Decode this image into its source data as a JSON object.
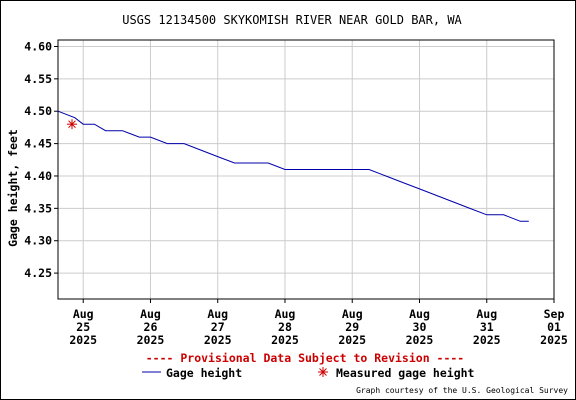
{
  "chart_data": {
    "type": "line",
    "title": "USGS 12134500 SKYKOMISH RIVER NEAR GOLD BAR, WA",
    "ylabel": "Gage height, feet",
    "xlabel": "",
    "ylim": [
      4.21,
      4.61
    ],
    "grid": true,
    "y_ticks": [
      "4.25",
      "4.30",
      "4.35",
      "4.40",
      "4.45",
      "4.50",
      "4.55",
      "4.60"
    ],
    "x_ticks": [
      {
        "month": "Aug",
        "day": "25",
        "year": "2025"
      },
      {
        "month": "Aug",
        "day": "26",
        "year": "2025"
      },
      {
        "month": "Aug",
        "day": "27",
        "year": "2025"
      },
      {
        "month": "Aug",
        "day": "28",
        "year": "2025"
      },
      {
        "month": "Aug",
        "day": "29",
        "year": "2025"
      },
      {
        "month": "Aug",
        "day": "30",
        "year": "2025"
      },
      {
        "month": "Aug",
        "day": "31",
        "year": "2025"
      },
      {
        "month": "Sep",
        "day": "01",
        "year": "2025"
      }
    ],
    "xlim": [
      "2025-08-24T15:00",
      "2025-09-01T00:00"
    ],
    "series": [
      {
        "name": "Gage height",
        "color": "#0000aa",
        "points": [
          [
            "2025-08-24T15:00",
            4.5
          ],
          [
            "2025-08-24T21:00",
            4.49
          ],
          [
            "2025-08-25T00:00",
            4.48
          ],
          [
            "2025-08-25T04:00",
            4.48
          ],
          [
            "2025-08-25T08:00",
            4.47
          ],
          [
            "2025-08-25T14:00",
            4.47
          ],
          [
            "2025-08-25T20:00",
            4.46
          ],
          [
            "2025-08-26T00:00",
            4.46
          ],
          [
            "2025-08-26T06:00",
            4.45
          ],
          [
            "2025-08-26T12:00",
            4.45
          ],
          [
            "2025-08-26T18:00",
            4.44
          ],
          [
            "2025-08-27T00:00",
            4.43
          ],
          [
            "2025-08-27T06:00",
            4.42
          ],
          [
            "2025-08-27T12:00",
            4.42
          ],
          [
            "2025-08-27T18:00",
            4.42
          ],
          [
            "2025-08-28T00:00",
            4.41
          ],
          [
            "2025-08-28T06:00",
            4.41
          ],
          [
            "2025-08-28T12:00",
            4.41
          ],
          [
            "2025-08-28T18:00",
            4.41
          ],
          [
            "2025-08-29T00:00",
            4.41
          ],
          [
            "2025-08-29T06:00",
            4.41
          ],
          [
            "2025-08-29T12:00",
            4.4
          ],
          [
            "2025-08-29T18:00",
            4.39
          ],
          [
            "2025-08-30T00:00",
            4.38
          ],
          [
            "2025-08-30T06:00",
            4.37
          ],
          [
            "2025-08-30T12:00",
            4.36
          ],
          [
            "2025-08-30T18:00",
            4.35
          ],
          [
            "2025-08-31T00:00",
            4.34
          ],
          [
            "2025-08-31T06:00",
            4.34
          ],
          [
            "2025-08-31T12:00",
            4.33
          ],
          [
            "2025-08-31T15:00",
            4.33
          ]
        ]
      }
    ],
    "measurements": {
      "name": "Measured gage height",
      "color": "#cc0000",
      "points": [
        [
          "2025-08-24T20:00",
          4.48
        ]
      ]
    },
    "provisional_note": "---- Provisional Data Subject to Revision ----",
    "legend_position": "bottom",
    "credit": "Graph courtesy of the U.S. Geological Survey"
  }
}
